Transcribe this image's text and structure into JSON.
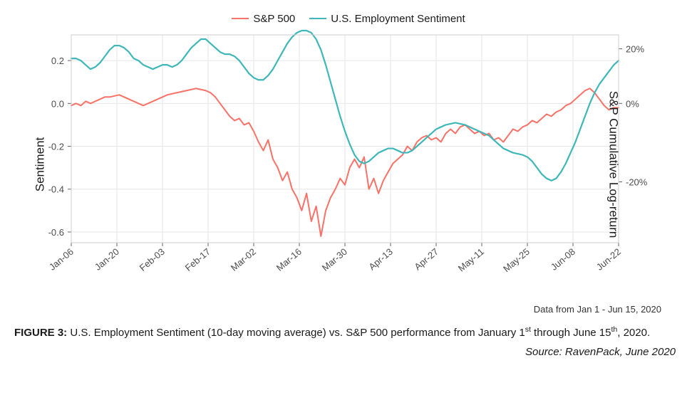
{
  "chart": {
    "type": "line",
    "background_color": "#ffffff",
    "panel_border_color": "#cccccc",
    "grid_color": "#e6e6e6",
    "axis_text_color": "#4d4d4d",
    "axis_text_fontsize": 15,
    "tick_label_fontsize": 13,
    "y_left": {
      "label": "Sentiment",
      "min": -0.65,
      "max": 0.32,
      "ticks": [
        -0.6,
        -0.4,
        -0.2,
        0.0,
        0.2
      ],
      "tick_labels": [
        "-0.6",
        "-0.4",
        "-0.2",
        "0.0",
        "0.2"
      ]
    },
    "y_right": {
      "label": "S&P Cumulative Log-return",
      "ticks_pct": [
        -20,
        0,
        20
      ],
      "tick_labels": [
        "-20%",
        "0%",
        "20%"
      ],
      "tick_at_left_values": [
        -0.366,
        0.0,
        0.255
      ]
    },
    "x": {
      "ticks": [
        "Jan-06",
        "Jan-20",
        "Feb-03",
        "Feb-17",
        "Mar-02",
        "Mar-16",
        "Mar-30",
        "Apr-13",
        "Apr-27",
        "May-11",
        "May-25",
        "Jun-08",
        "Jun-22"
      ],
      "rotate_deg": -40
    },
    "legend": {
      "items": [
        {
          "label": "S&P 500",
          "color": "#f87268"
        },
        {
          "label": "U.S. Employment Sentiment",
          "color": "#3fb7b8"
        }
      ]
    },
    "series": [
      {
        "name": "S&P 500",
        "color": "#f87268",
        "line_width": 2.0,
        "y": [
          -0.01,
          0.0,
          -0.01,
          0.01,
          0.0,
          0.01,
          0.02,
          0.03,
          0.03,
          0.035,
          0.04,
          0.03,
          0.02,
          0.01,
          0.0,
          -0.01,
          0.0,
          0.01,
          0.02,
          0.03,
          0.04,
          0.045,
          0.05,
          0.055,
          0.06,
          0.065,
          0.07,
          0.065,
          0.06,
          0.05,
          0.03,
          0.0,
          -0.03,
          -0.06,
          -0.08,
          -0.07,
          -0.1,
          -0.09,
          -0.13,
          -0.18,
          -0.22,
          -0.17,
          -0.26,
          -0.3,
          -0.36,
          -0.32,
          -0.4,
          -0.44,
          -0.5,
          -0.42,
          -0.55,
          -0.48,
          -0.62,
          -0.5,
          -0.44,
          -0.4,
          -0.35,
          -0.38,
          -0.3,
          -0.26,
          -0.3,
          -0.25,
          -0.4,
          -0.35,
          -0.42,
          -0.36,
          -0.32,
          -0.28,
          -0.26,
          -0.24,
          -0.2,
          -0.22,
          -0.18,
          -0.16,
          -0.15,
          -0.17,
          -0.16,
          -0.18,
          -0.14,
          -0.12,
          -0.14,
          -0.11,
          -0.1,
          -0.12,
          -0.14,
          -0.13,
          -0.15,
          -0.14,
          -0.17,
          -0.16,
          -0.18,
          -0.15,
          -0.12,
          -0.13,
          -0.11,
          -0.1,
          -0.08,
          -0.09,
          -0.07,
          -0.05,
          -0.06,
          -0.04,
          -0.03,
          -0.01,
          0.0,
          0.02,
          0.04,
          0.06,
          0.07,
          0.05,
          0.02,
          -0.01,
          -0.03,
          -0.02,
          -0.02
        ]
      },
      {
        "name": "U.S. Employment Sentiment",
        "color": "#3fb7b8",
        "line_width": 2.2,
        "y": [
          0.21,
          0.21,
          0.2,
          0.18,
          0.16,
          0.17,
          0.19,
          0.22,
          0.25,
          0.27,
          0.27,
          0.26,
          0.24,
          0.21,
          0.2,
          0.18,
          0.17,
          0.16,
          0.17,
          0.18,
          0.18,
          0.17,
          0.18,
          0.2,
          0.23,
          0.26,
          0.28,
          0.3,
          0.3,
          0.28,
          0.26,
          0.24,
          0.23,
          0.23,
          0.22,
          0.2,
          0.17,
          0.14,
          0.12,
          0.11,
          0.11,
          0.13,
          0.16,
          0.2,
          0.24,
          0.28,
          0.31,
          0.33,
          0.34,
          0.34,
          0.33,
          0.3,
          0.25,
          0.18,
          0.1,
          0.02,
          -0.06,
          -0.13,
          -0.19,
          -0.24,
          -0.27,
          -0.28,
          -0.27,
          -0.25,
          -0.23,
          -0.22,
          -0.21,
          -0.21,
          -0.22,
          -0.23,
          -0.23,
          -0.22,
          -0.2,
          -0.18,
          -0.16,
          -0.14,
          -0.12,
          -0.11,
          -0.1,
          -0.095,
          -0.09,
          -0.095,
          -0.1,
          -0.11,
          -0.12,
          -0.13,
          -0.14,
          -0.15,
          -0.17,
          -0.19,
          -0.21,
          -0.22,
          -0.23,
          -0.235,
          -0.24,
          -0.25,
          -0.27,
          -0.3,
          -0.33,
          -0.35,
          -0.36,
          -0.35,
          -0.32,
          -0.28,
          -0.23,
          -0.18,
          -0.12,
          -0.06,
          0.0,
          0.05,
          0.09,
          0.12,
          0.15,
          0.18,
          0.2
        ]
      }
    ]
  },
  "annotations": {
    "data_note": "Data from Jan 1 - Jun 15, 2020",
    "figure_label": "FIGURE 3:",
    "caption_html": "U.S. Employment Sentiment (10-day moving average) vs. S&P 500 performance from January 1<sup>st</sup> through June 15<sup>th</sup>, 2020.",
    "source": "Source: RavenPack, June 2020"
  }
}
